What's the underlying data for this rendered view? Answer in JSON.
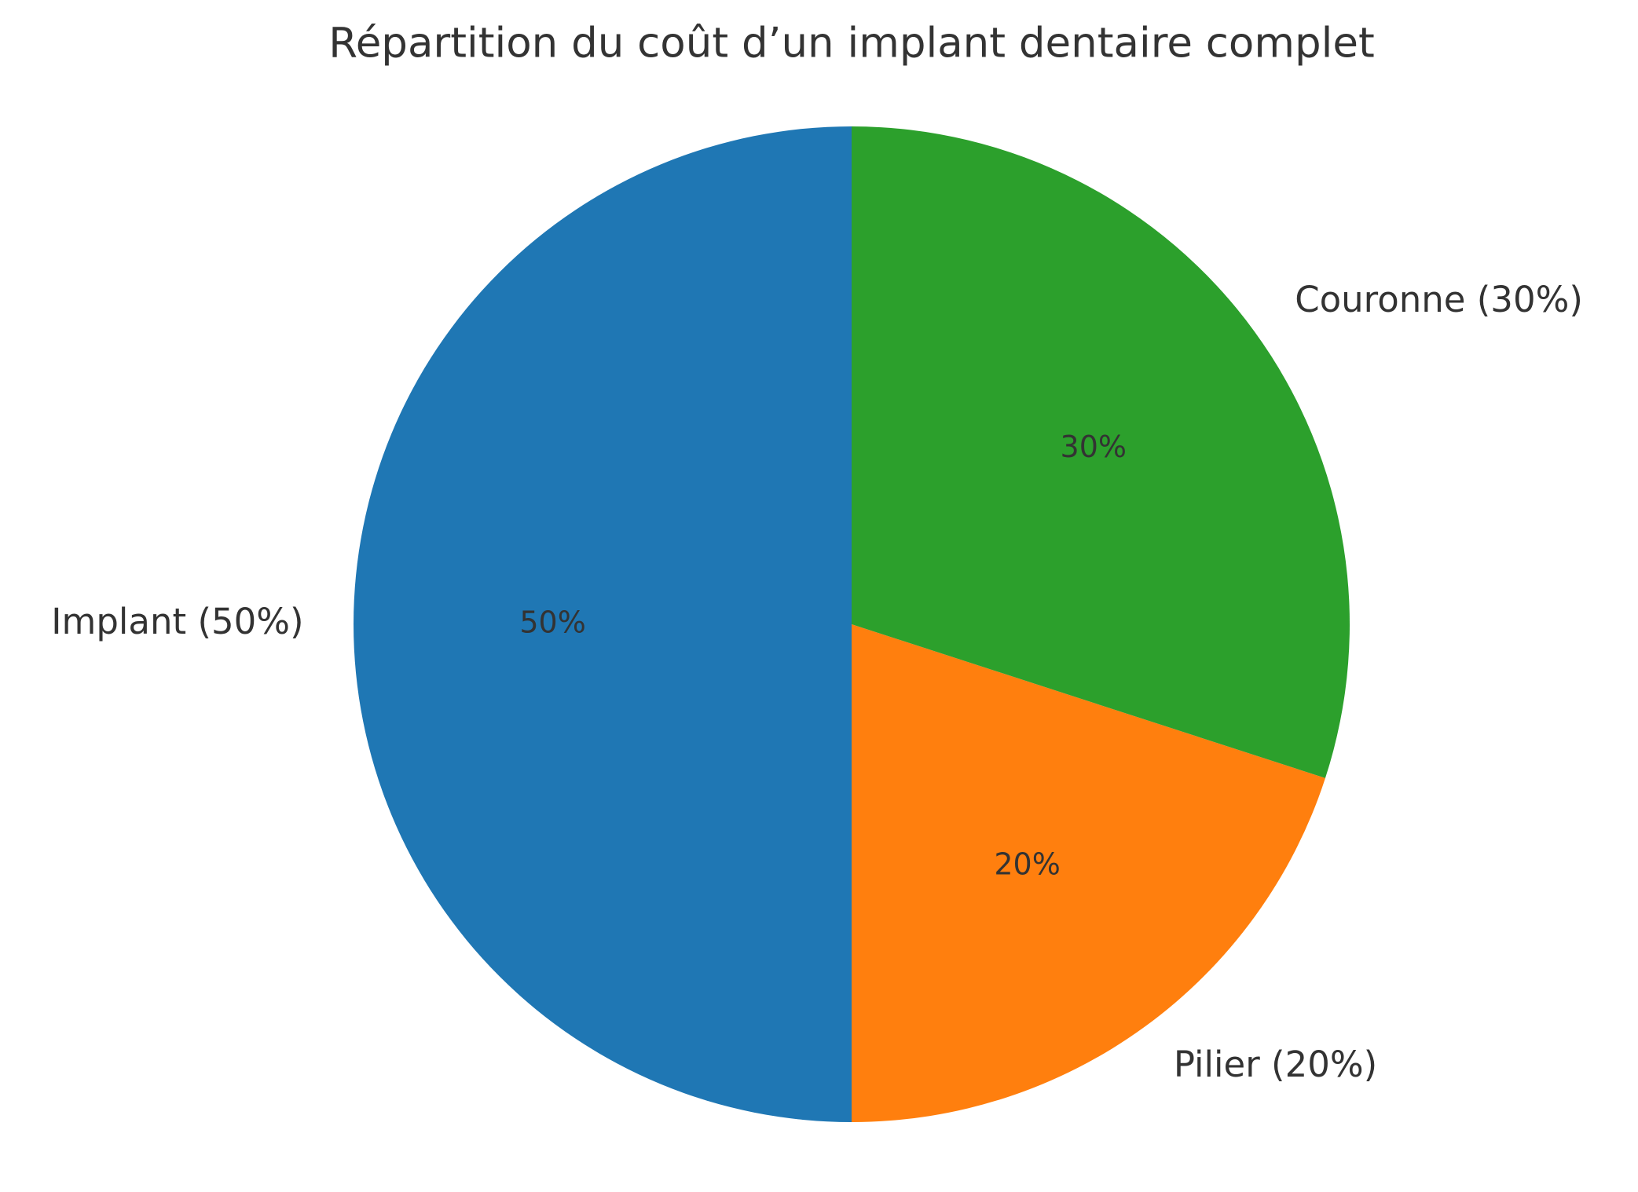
{
  "chart_data": {
    "type": "pie",
    "title": "Répartition du coût d’un implant dentaire complet",
    "categories": [
      "Implant (50%)",
      "Pilier (20%)",
      "Couronne (30%)"
    ],
    "values": [
      50,
      20,
      30
    ],
    "value_labels": [
      "50%",
      "20%",
      "30%"
    ],
    "colors": [
      "#1f77b4",
      "#ff7f0e",
      "#2ca02c"
    ]
  }
}
